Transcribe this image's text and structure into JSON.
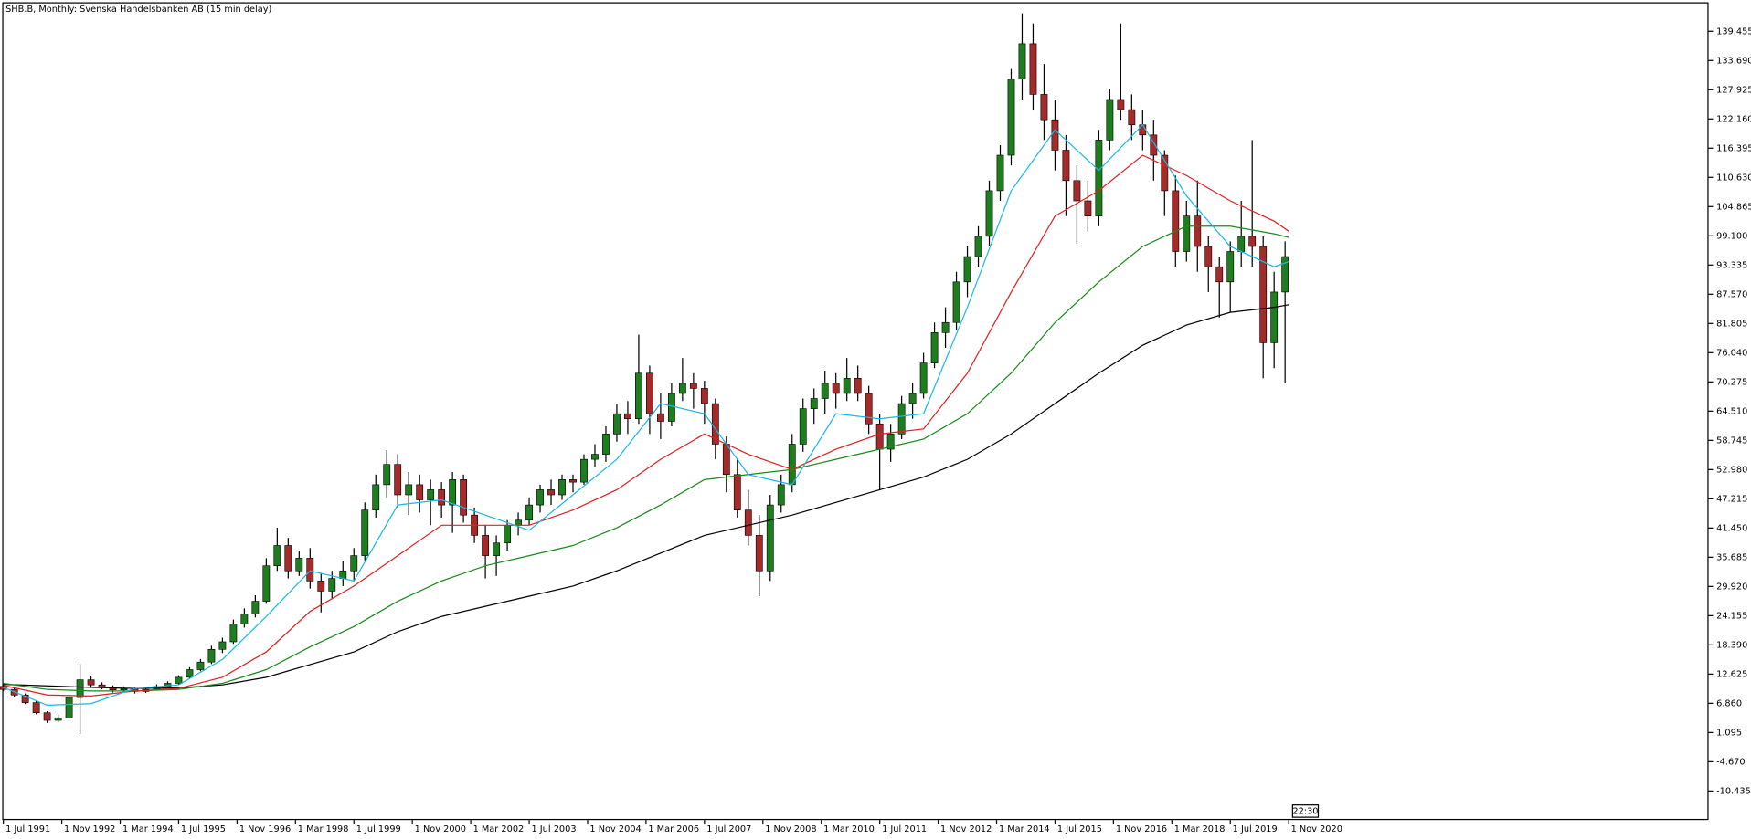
{
  "chart_data": {
    "type": "candlestick",
    "title": "SHB.B, Monthly:  Svenska Handelsbanken AB (15 min delay)",
    "time_marker": "22:30",
    "bull_color": "#1e7d1e",
    "bear_color": "#a52a2a",
    "wick_color": "#000000",
    "ylim": [
      -16.16,
      145.18
    ],
    "yticks": [
      -10.435,
      {
        "value": -4.67,
        "label": "-4.670"
      },
      1.095,
      {
        "value": 6.86,
        "label": "6.860"
      },
      12.625,
      {
        "value": 18.39,
        "label": "18.390"
      },
      24.155,
      {
        "value": 29.92,
        "label": "29.920"
      },
      35.685,
      {
        "value": 41.45,
        "label": "41.450"
      },
      47.215,
      {
        "value": 52.98,
        "label": "52.980"
      },
      58.745,
      {
        "value": 64.51,
        "label": "64.510"
      },
      70.275,
      {
        "value": 76.04,
        "label": "76.040"
      },
      81.805,
      {
        "value": 87.57,
        "label": "87.570"
      },
      93.335,
      {
        "value": 99.1,
        "label": "99.100"
      },
      104.865,
      {
        "value": 110.63,
        "label": "110.630"
      },
      116.395,
      {
        "value": 122.16,
        "label": "122.160"
      },
      127.925,
      {
        "value": 133.69,
        "label": "133.690"
      },
      139.455
    ],
    "xticks": [
      "1 Jul 1991",
      "1 Nov 1992",
      "1 Mar 1994",
      "1 Jul 1995",
      "1 Nov 1996",
      "1 Mar 1998",
      "1 Jul 1999",
      "1 Nov 2000",
      "1 Mar 2002",
      "1 Jul 2003",
      "1 Nov 2004",
      "1 Mar 2006",
      "1 Jul 2007",
      "1 Nov 2008",
      "1 Mar 2010",
      "1 Jul 2011",
      "1 Nov 2012",
      "1 Mar 2014",
      "1 Jul 2015",
      "1 Nov 2016",
      "1 Mar 2018",
      "1 Jul 2019",
      "1 Nov 2020"
    ],
    "x": [
      "1 Jul 1991",
      "1 Oct 1991",
      "1 Jan 1992",
      "1 Apr 1992",
      "1 Jul 1992",
      "1 Oct 1992",
      "1 Jan 1993",
      "1 Apr 1993",
      "1 Jul 1993",
      "1 Oct 1993",
      "1 Jan 1994",
      "1 Apr 1994",
      "1 Jul 1994",
      "1 Oct 1994",
      "1 Jan 1995",
      "1 Apr 1995",
      "1 Jul 1995",
      "1 Oct 1995",
      "1 Jan 1996",
      "1 Apr 1996",
      "1 Jul 1996",
      "1 Oct 1996",
      "1 Jan 1997",
      "1 Apr 1997",
      "1 Jul 1997",
      "1 Oct 1997",
      "1 Jan 1998",
      "1 Apr 1998",
      "1 Jul 1998",
      "1 Oct 1998",
      "1 Jan 1999",
      "1 Apr 1999",
      "1 Jul 1999",
      "1 Oct 1999",
      "1 Jan 2000",
      "1 Apr 2000",
      "1 Jul 2000",
      "1 Oct 2000",
      "1 Jan 2001",
      "1 Apr 2001",
      "1 Jul 2001",
      "1 Oct 2001",
      "1 Jan 2002",
      "1 Apr 2002",
      "1 Jul 2002",
      "1 Oct 2002",
      "1 Jan 2003",
      "1 Apr 2003",
      "1 Jul 2003",
      "1 Oct 2003",
      "1 Jan 2004",
      "1 Apr 2004",
      "1 Jul 2004",
      "1 Oct 2004",
      "1 Jan 2005",
      "1 Apr 2005",
      "1 Jul 2005",
      "1 Oct 2005",
      "1 Jan 2006",
      "1 Apr 2006",
      "1 Jul 2006",
      "1 Oct 2006",
      "1 Jan 2007",
      "1 Apr 2007",
      "1 Jul 2007",
      "1 Oct 2007",
      "1 Jan 2008",
      "1 Apr 2008",
      "1 Jul 2008",
      "1 Oct 2008",
      "1 Jan 2009",
      "1 Apr 2009",
      "1 Jul 2009",
      "1 Oct 2009",
      "1 Jan 2010",
      "1 Apr 2010",
      "1 Jul 2010",
      "1 Oct 2010",
      "1 Jan 2011",
      "1 Apr 2011",
      "1 Jul 2011",
      "1 Oct 2011",
      "1 Jan 2012",
      "1 Apr 2012",
      "1 Jul 2012",
      "1 Oct 2012",
      "1 Jan 2013",
      "1 Apr 2013",
      "1 Jul 2013",
      "1 Oct 2013",
      "1 Jan 2014",
      "1 Apr 2014",
      "1 Jul 2014",
      "1 Oct 2014",
      "1 Jan 2015",
      "1 Apr 2015",
      "1 Jul 2015",
      "1 Oct 2015",
      "1 Jan 2016",
      "1 Apr 2016",
      "1 Jul 2016",
      "1 Oct 2016",
      "1 Jan 2017",
      "1 Apr 2017",
      "1 Jul 2017",
      "1 Oct 2017",
      "1 Jan 2018",
      "1 Apr 2018",
      "1 Jul 2018",
      "1 Oct 2018",
      "1 Jan 2019",
      "1 Apr 2019",
      "1 Jul 2019",
      "1 Oct 2019",
      "1 Jan 2020",
      "1 Apr 2020",
      "1 Jul 2020",
      "1 Oct 2020"
    ],
    "open": [
      10.2,
      9.6,
      8.5,
      7.0,
      5.0,
      3.5,
      4.0,
      8.0,
      11.5,
      10.5,
      10.0,
      9.5,
      9.8,
      9.2,
      9.6,
      10.2,
      10.8,
      12.0,
      13.5,
      15.0,
      17.5,
      19.0,
      22.5,
      24.5,
      27.0,
      34.0,
      38.0,
      33.0,
      35.5,
      31.0,
      29.0,
      31.5,
      33.0,
      36.0,
      45.0,
      50.0,
      54.0,
      48.0,
      50.0,
      47.0,
      49.0,
      46.0,
      51.0,
      44.0,
      40.0,
      36.0,
      38.5,
      42.0,
      43.0,
      46.0,
      49.0,
      48.0,
      51.0,
      50.5,
      55.0,
      56.0,
      60.0,
      64.0,
      63.0,
      72.0,
      64.0,
      62.5,
      68.0,
      70.0,
      69.0,
      66.0,
      58.0,
      52.0,
      45.0,
      40.0,
      33.0,
      46.0,
      50.0,
      58.0,
      65.0,
      67.0,
      70.0,
      68.0,
      71.0,
      68.0,
      62.0,
      57.0,
      60.0,
      66.0,
      68.0,
      74.0,
      80.0,
      82.0,
      90.0,
      95.0,
      99.0,
      108.0,
      115.0,
      130.0,
      137.0,
      127.0,
      122.0,
      116.0,
      110.0,
      106.0,
      103.0,
      118.0,
      126.0,
      124.0,
      121.0,
      119.0,
      115.0,
      108.0,
      96.0,
      103.0,
      97.0,
      93.0,
      90.0,
      96.0,
      99.0,
      97.0,
      78.0,
      88.0
    ],
    "high": [
      10.6,
      9.9,
      8.8,
      7.3,
      5.3,
      4.6,
      8.5,
      14.6,
      12.3,
      11.0,
      10.4,
      10.2,
      10.1,
      9.9,
      10.6,
      11.2,
      12.4,
      14.0,
      15.6,
      18.2,
      19.8,
      23.4,
      25.6,
      28.2,
      35.5,
      41.5,
      39.5,
      37.0,
      37.5,
      32.5,
      33.0,
      35.0,
      37.5,
      46.5,
      52.0,
      56.8,
      56.0,
      52.5,
      52.0,
      51.0,
      50.5,
      52.5,
      52.0,
      45.5,
      42.0,
      40.0,
      43.0,
      44.5,
      47.5,
      50.0,
      51.0,
      52.0,
      52.0,
      56.0,
      58.0,
      61.5,
      66.0,
      66.5,
      79.6,
      73.5,
      68.0,
      70.0,
      75.0,
      72.0,
      70.5,
      67.0,
      59.5,
      55.0,
      49.0,
      44.0,
      48.0,
      52.0,
      60.0,
      67.0,
      69.0,
      72.5,
      72.0,
      75.0,
      73.5,
      69.5,
      64.0,
      62.0,
      67.5,
      70.0,
      76.0,
      82.0,
      85.0,
      92.0,
      97.0,
      101.0,
      110.0,
      117.0,
      132.0,
      143.0,
      141.0,
      133.0,
      126.0,
      119.0,
      113.0,
      110.0,
      120.0,
      128.0,
      141.0,
      127.0,
      124.0,
      122.0,
      116.0,
      111.0,
      106.0,
      110.0,
      99.0,
      95.0,
      98.0,
      106.0,
      118.0,
      99.0,
      92.0,
      98.0
    ],
    "low": [
      9.3,
      8.2,
      6.7,
      4.7,
      3.0,
      3.1,
      3.8,
      0.8,
      10.0,
      9.6,
      9.0,
      9.1,
      8.8,
      8.9,
      9.4,
      10.0,
      10.6,
      11.8,
      13.2,
      14.6,
      16.8,
      18.6,
      21.8,
      23.8,
      26.5,
      33.0,
      31.5,
      32.0,
      29.5,
      24.8,
      27.5,
      30.0,
      31.0,
      35.0,
      43.5,
      47.5,
      45.5,
      44.0,
      44.5,
      42.0,
      43.5,
      40.5,
      42.5,
      38.5,
      31.5,
      32.0,
      37.0,
      40.0,
      42.0,
      44.5,
      46.0,
      47.0,
      48.5,
      50.0,
      53.5,
      54.5,
      58.5,
      60.0,
      62.0,
      60.0,
      59.0,
      61.5,
      66.5,
      65.0,
      62.0,
      55.0,
      48.5,
      43.5,
      38.0,
      28.0,
      31.0,
      44.5,
      48.5,
      56.5,
      62.0,
      64.0,
      65.0,
      66.5,
      66.5,
      60.0,
      49.0,
      54.5,
      59.0,
      63.0,
      67.0,
      73.0,
      77.0,
      80.5,
      87.0,
      93.0,
      97.0,
      106.0,
      113.0,
      126.0,
      124.0,
      118.0,
      112.0,
      103.0,
      97.5,
      100.0,
      101.0,
      116.0,
      122.0,
      118.0,
      116.0,
      110.0,
      103.0,
      93.0,
      94.0,
      92.0,
      88.0,
      83.0,
      84.0,
      93.0,
      93.0,
      71.0,
      73.0,
      70.0
    ],
    "close": [
      9.6,
      8.5,
      7.0,
      5.0,
      3.5,
      4.0,
      8.0,
      11.5,
      10.5,
      10.0,
      9.5,
      9.8,
      9.2,
      9.6,
      10.2,
      10.8,
      12.0,
      13.5,
      15.0,
      17.5,
      19.0,
      22.5,
      24.5,
      27.0,
      34.0,
      38.0,
      33.0,
      35.5,
      31.0,
      29.0,
      31.5,
      33.0,
      36.0,
      45.0,
      50.0,
      54.0,
      48.0,
      50.0,
      47.0,
      49.0,
      46.0,
      51.0,
      44.0,
      40.0,
      36.0,
      38.5,
      42.0,
      43.0,
      46.0,
      49.0,
      48.0,
      51.0,
      50.5,
      55.0,
      56.0,
      60.0,
      64.0,
      63.0,
      72.0,
      64.0,
      62.5,
      68.0,
      70.0,
      69.0,
      66.0,
      58.0,
      52.0,
      45.0,
      40.0,
      33.0,
      46.0,
      50.0,
      58.0,
      65.0,
      67.0,
      70.0,
      68.0,
      71.0,
      68.0,
      62.0,
      57.0,
      60.0,
      66.0,
      68.0,
      74.0,
      80.0,
      82.0,
      90.0,
      95.0,
      99.0,
      108.0,
      115.0,
      130.0,
      137.0,
      127.0,
      122.0,
      116.0,
      110.0,
      106.0,
      103.0,
      118.0,
      126.0,
      124.0,
      121.0,
      119.0,
      115.0,
      108.0,
      96.0,
      103.0,
      97.0,
      93.0,
      90.0,
      96.0,
      99.0,
      97.0,
      78.0,
      88.0,
      95.0
    ],
    "overlay_x": [
      "1 Jul 1991",
      "1 Jul 1992",
      "1 Jul 1993",
      "1 Jul 1994",
      "1 Jul 1995",
      "1 Jul 1996",
      "1 Jul 1997",
      "1 Jul 1998",
      "1 Jul 1999",
      "1 Jul 2000",
      "1 Jul 2001",
      "1 Jul 2002",
      "1 Jul 2003",
      "1 Jul 2004",
      "1 Jul 2005",
      "1 Jul 2006",
      "1 Jul 2007",
      "1 Jul 2008",
      "1 Jul 2009",
      "1 Jul 2010",
      "1 Jul 2011",
      "1 Jul 2012",
      "1 Jul 2013",
      "1 Jul 2014",
      "1 Jul 2015",
      "1 Jul 2016",
      "1 Jul 2017",
      "1 Jul 2018",
      "1 Jul 2019",
      "1 Jul 2020",
      "1 Nov 2020"
    ],
    "overlays": [
      {
        "color": "#000000",
        "values": [
          10.6,
          10.3,
          10.0,
          9.8,
          9.9,
          10.5,
          12,
          14.5,
          17,
          21,
          24,
          26,
          28,
          30,
          33,
          36.5,
          40,
          42,
          44,
          46.5,
          49,
          51.5,
          55,
          60,
          66,
          72,
          77.5,
          81.5,
          84,
          85,
          85.5
        ]
      },
      {
        "color": "#1a8a1a",
        "values": [
          10.8,
          9.6,
          9.3,
          9.3,
          9.6,
          10.8,
          13.5,
          18,
          22,
          27,
          31,
          34,
          36,
          38,
          41.5,
          46,
          51,
          52,
          53,
          55,
          57,
          59,
          64,
          72,
          82,
          90,
          97,
          101,
          101,
          99.5,
          98.8
        ]
      },
      {
        "color": "#e02020",
        "values": [
          10.4,
          8.5,
          8.3,
          9.3,
          9.8,
          12,
          17,
          25,
          30,
          36,
          42,
          42,
          42,
          45,
          49,
          55,
          60,
          56,
          53,
          57,
          60,
          61,
          72,
          88,
          103,
          108,
          115,
          111,
          106,
          102,
          100
        ]
      },
      {
        "color": "#1ab8e8",
        "values": [
          10.0,
          6.5,
          6.8,
          9.8,
          10.5,
          15.5,
          24,
          33,
          31,
          46,
          47,
          44,
          41,
          48,
          55,
          66,
          64,
          52,
          50,
          64,
          63,
          64,
          85,
          108,
          120,
          112,
          121,
          107,
          97,
          93,
          94
        ]
      }
    ]
  }
}
